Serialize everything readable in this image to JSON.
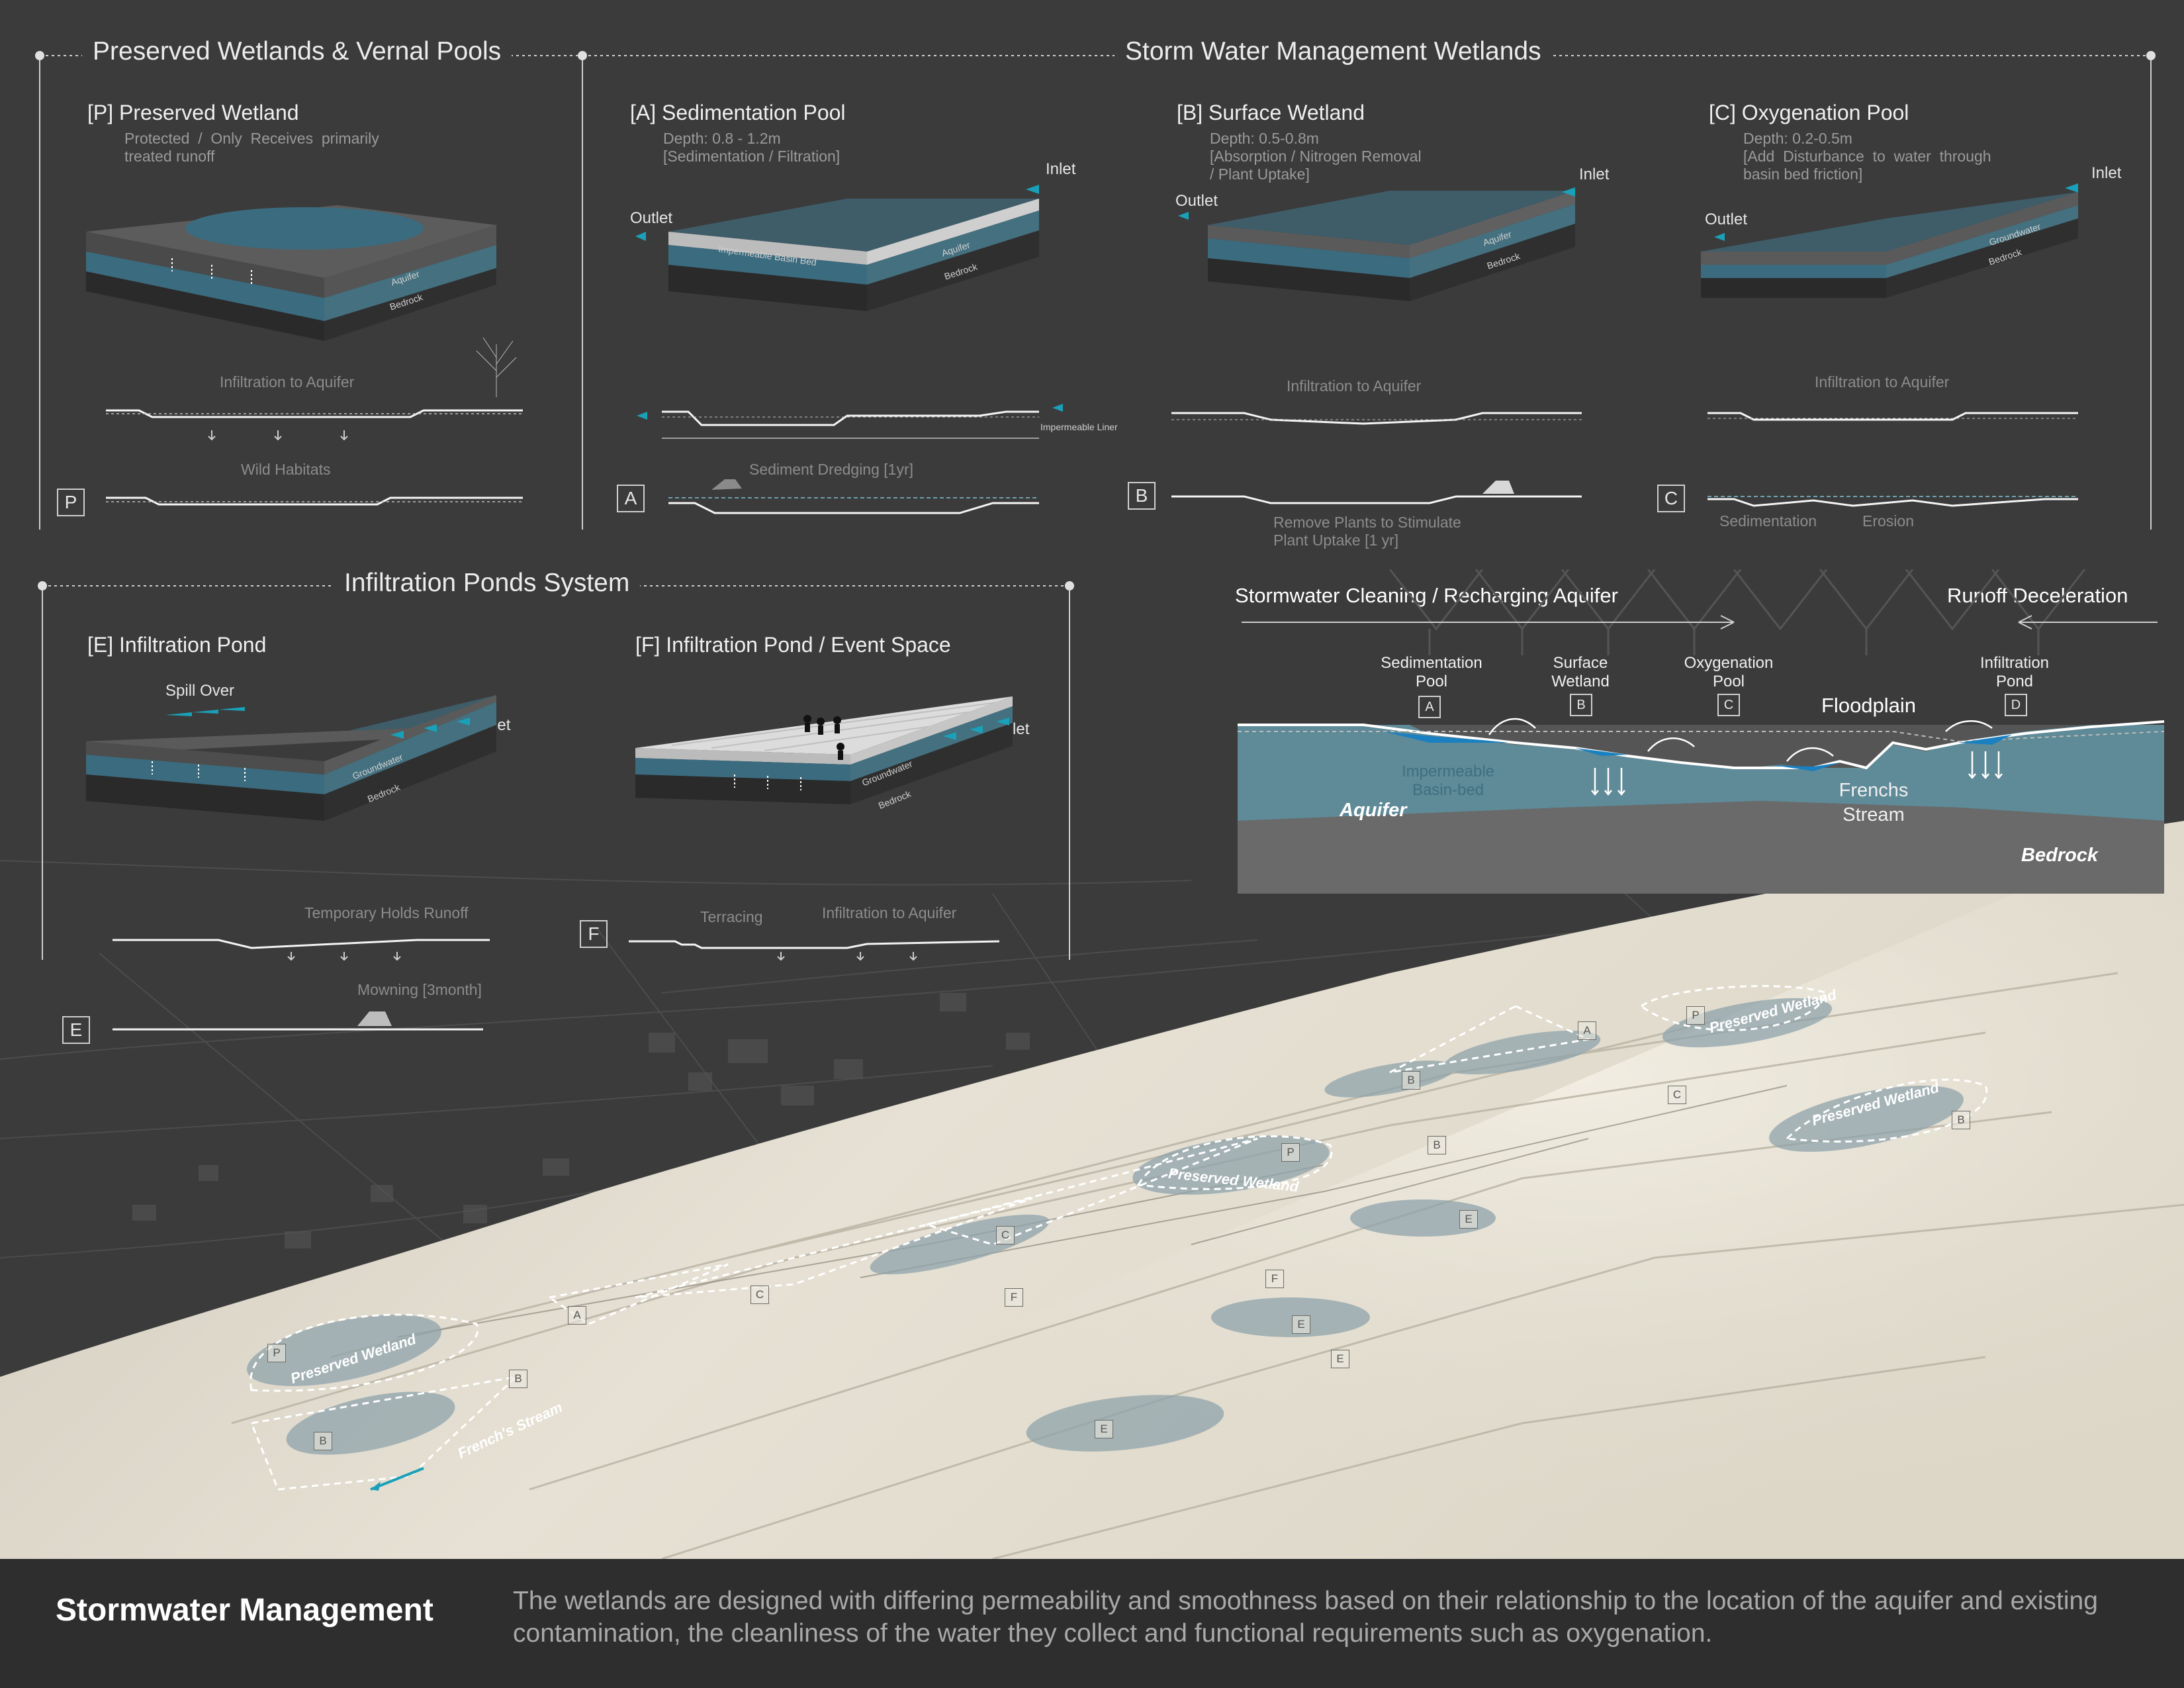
{
  "sections": {
    "preserved": "Preserved Wetlands & Vernal Pools",
    "storm": "Storm Water Management Wetlands",
    "infiltration": "Infiltration Ponds System"
  },
  "panels": {
    "P": {
      "title": "[P] Preserved Wetland",
      "desc": "Protected  /  Only  Receives  primarily\ntreated runoff",
      "aquifer": "Aquifer",
      "bedrock": "Bedrock",
      "sec1": "Infiltration to Aquifer",
      "sec2": "Wild Habitats",
      "letter": "P"
    },
    "A": {
      "title": "[A] Sedimentation Pool",
      "desc": "Depth: 0.8 - 1.2m\n[Sedimentation / Filtration]",
      "inlet": "Inlet",
      "outlet": "Outlet",
      "basin": "Impermeable Basin Bed",
      "aquifer": "Aquifer",
      "bedrock": "Bedrock",
      "liner": "Impermeable Liner",
      "sec2": "Sediment Dredging [1yr]",
      "letter": "A"
    },
    "B": {
      "title": "[B] Surface Wetland",
      "desc": "Depth: 0.5-0.8m\n[Absorption / Nitrogen Removal\n/ Plant Uptake]",
      "inlet": "Inlet",
      "outlet": "Outlet",
      "aquifer": "Aquifer",
      "bedrock": "Bedrock",
      "sec1": "Infiltration to Aquifer",
      "sec2": "Remove Plants to Stimulate\nPlant Uptake [1 yr]",
      "letter": "B"
    },
    "C": {
      "title": "[C] Oxygenation Pool",
      "desc": "Depth: 0.2-0.5m\n[Add  Disturbance  to  water  through\nbasin bed friction]",
      "inlet": "Inlet",
      "outlet": "Outlet",
      "groundwater": "Groundwater",
      "bedrock": "Bedrock",
      "sec1": "Infiltration to Aquifer",
      "sec2a": "Sedimentation",
      "sec2b": "Erosion",
      "letter": "C"
    },
    "E": {
      "title": "[E] Infiltration Pond",
      "spill": "Spill Over",
      "inlet": "Inlet",
      "groundwater": "Groundwater",
      "bedrock": "Bedrock",
      "sec1": "Temporary Holds Runoff",
      "sec2": "Mowning [3month]",
      "letter": "E"
    },
    "F": {
      "title": "[F] Infiltration Pond / Event Space",
      "inlet": "Inlet",
      "groundwater": "Groundwater",
      "bedrock": "Bedrock",
      "sec1a": "Terracing",
      "sec1b": "Infiltration to Aquifer",
      "letter": "F"
    }
  },
  "xsection": {
    "left_title": "Stormwater Cleaning / Recharging Aquifer",
    "right_title": "Runoff Deceleration",
    "labels": [
      "Sedimentation\nPool",
      "Surface\nWetland",
      "Oxygenation\nPool",
      "Infiltration\nPond"
    ],
    "letters": [
      "A",
      "B",
      "C",
      "D"
    ],
    "floodplain": "Floodplain",
    "impermeable": "Impermeable\nBasin-bed",
    "stream": "Frenchs\nStream",
    "aquifer": "Aquifer",
    "bedrock": "Bedrock"
  },
  "map": {
    "preserved_label": "Preserved Wetland",
    "stream_label": "French's Stream",
    "tags": [
      "A",
      "P",
      "B",
      "C",
      "B",
      "P",
      "B",
      "E",
      "C",
      "F",
      "C",
      "F",
      "A",
      "E",
      "E",
      "P",
      "B",
      "B",
      "E"
    ]
  },
  "footer": {
    "title": "Stormwater Management",
    "description": "The wetlands are designed with differing permeability and smoothness based on their relationship to the location of the aquifer and existing contamination, the cleanliness of the water they collect and functional requirements such as oxygenation."
  },
  "colors": {
    "background": "#3b3b3b",
    "water": "#3a6a7d",
    "aquifer": "#5f8a97",
    "accent_cyan": "#1aa0b8",
    "terrain": "#e2ddd0",
    "footer": "#2e2e2e"
  }
}
